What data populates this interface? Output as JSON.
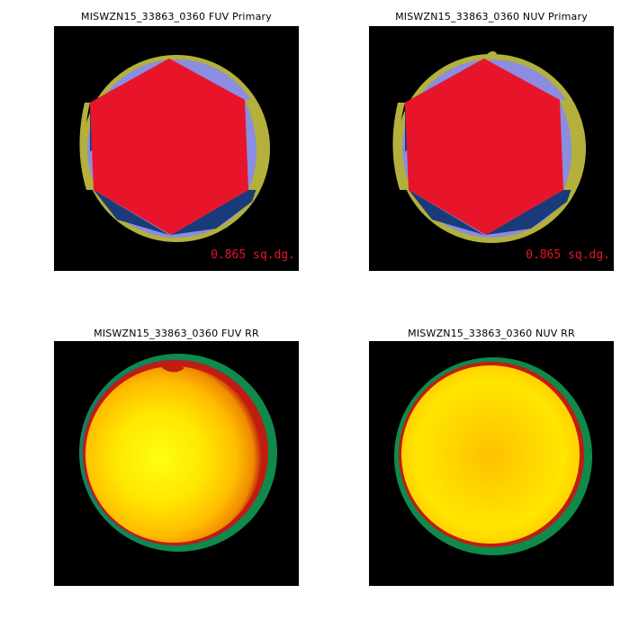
{
  "panels": [
    {
      "title": "MISWZN15_33863_0360 FUV Primary",
      "area_label": "0.865 sq.dg."
    },
    {
      "title": "MISWZN15_33863_0360 NUV Primary",
      "area_label": "0.865 sq.dg."
    },
    {
      "title": "MISWZN15_33863_0360 FUV RR"
    },
    {
      "title": "MISWZN15_33863_0360 NUV RR"
    }
  ],
  "colors": {
    "background": "#000000",
    "primary_fill": "#e8152a",
    "primary_dark_blue": "#1a3b7a",
    "primary_light_blue": "#8b8de0",
    "primary_mid_blue": "#5a63c8",
    "primary_olive": "#b3b03c",
    "area_label": "#e8152a",
    "rr_center": "#ffff10",
    "rr_mid": "#ffb400",
    "rr_edge_red": "#c01c10",
    "rr_edge_green": "#0f8a4a"
  }
}
